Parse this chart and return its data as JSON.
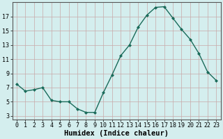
{
  "x": [
    0,
    1,
    2,
    3,
    4,
    5,
    6,
    7,
    8,
    9,
    10,
    11,
    12,
    13,
    14,
    15,
    16,
    17,
    18,
    19,
    20,
    21,
    22,
    23
  ],
  "y": [
    7.5,
    6.5,
    6.7,
    7.0,
    5.2,
    5.0,
    5.0,
    4.0,
    3.5,
    3.5,
    6.3,
    8.8,
    11.5,
    13.0,
    15.5,
    17.2,
    18.3,
    18.4,
    16.8,
    15.2,
    13.8,
    11.8,
    9.2,
    8.0
  ],
  "line_color": "#1a6b5a",
  "marker": "D",
  "marker_size": 2.0,
  "bg_color": "#d4eeee",
  "grid_color_x": "#c8a8a8",
  "grid_color_y": "#c8a8a8",
  "xlabel": "Humidex (Indice chaleur)",
  "xlim": [
    -0.5,
    23.5
  ],
  "ylim": [
    2.5,
    19.0
  ],
  "yticks": [
    3,
    5,
    7,
    9,
    11,
    13,
    15,
    17
  ],
  "xticks": [
    0,
    1,
    2,
    3,
    4,
    5,
    6,
    7,
    8,
    9,
    10,
    11,
    12,
    13,
    14,
    15,
    16,
    17,
    18,
    19,
    20,
    21,
    22,
    23
  ],
  "xtick_labels": [
    "0",
    "1",
    "2",
    "3",
    "4",
    "5",
    "6",
    "7",
    "8",
    "9",
    "10",
    "11",
    "12",
    "13",
    "14",
    "15",
    "16",
    "17",
    "18",
    "19",
    "20",
    "21",
    "22",
    "23"
  ],
  "xlabel_fontsize": 7.5,
  "tick_fontsize": 6.0,
  "linewidth": 1.0,
  "spine_color": "#555555"
}
